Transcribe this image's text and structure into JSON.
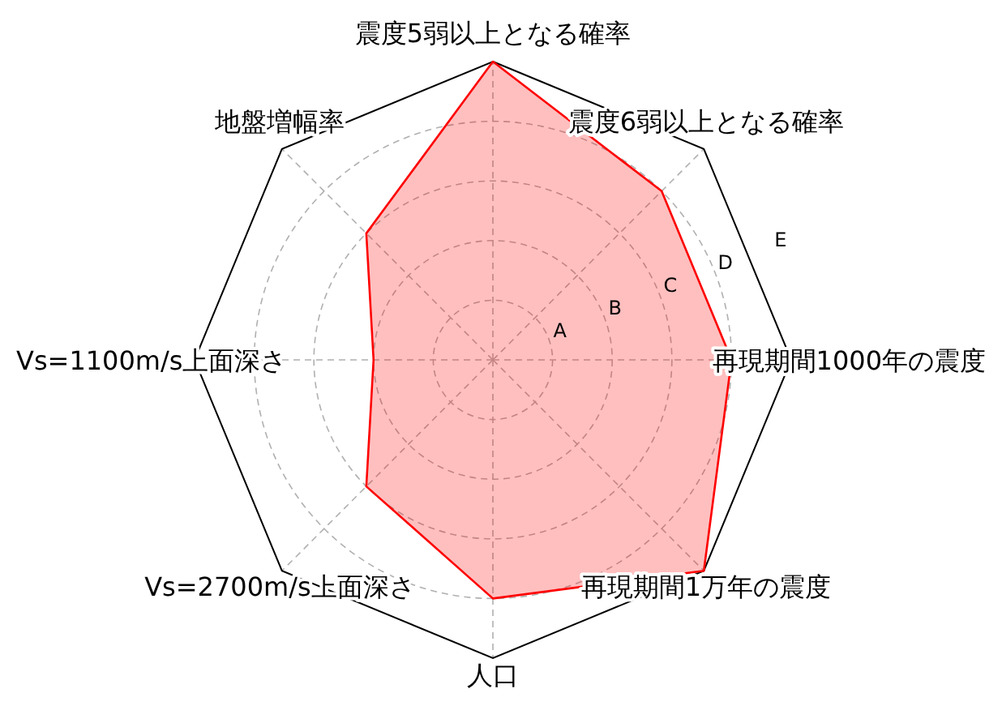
{
  "chart_data": {
    "type": "radar",
    "categories": [
      "震度5弱以上となる確率",
      "震度6弱以上となる確率",
      "再現期間1000年の震度",
      "再現期間1万年の震度",
      "人口",
      "Vs=2700m/s上面深さ",
      "Vs=1100m/s上面深さ",
      "地盤増幅率"
    ],
    "series": [
      {
        "color": "#ff0000",
        "values": [
          5,
          4,
          4,
          5,
          4,
          3,
          2,
          3
        ]
      }
    ],
    "ylim": [
      0,
      5
    ],
    "yticks": [
      {
        "value": 1,
        "label": "A"
      },
      {
        "value": 2,
        "label": "B"
      },
      {
        "value": 3,
        "label": "C"
      },
      {
        "value": 4,
        "label": "D"
      },
      {
        "value": 5,
        "label": "E"
      }
    ],
    "grid": true
  }
}
